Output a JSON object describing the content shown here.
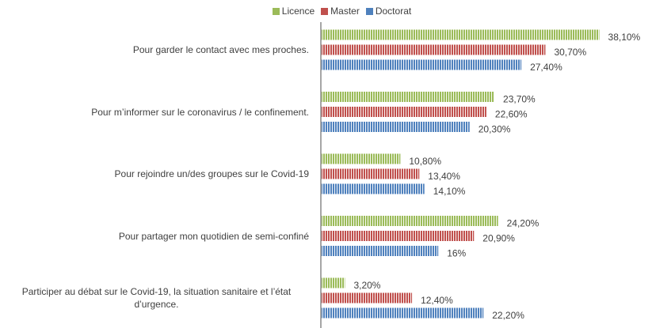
{
  "chart_data": {
    "type": "bar",
    "orientation": "horizontal",
    "categories": [
      "Pour garder le contact avec mes proches.",
      "Pour m’informer sur le coronavirus / le confinement.",
      "Pour rejoindre un/des groupes sur le Covid-19",
      "Pour partager mon quotidien de semi-confiné",
      "Participer au débat sur le Covid-19, la situation sanitaire et l’état d’urgence."
    ],
    "series": [
      {
        "name": "Licence",
        "color": "#9bbb59",
        "values": [
          38.1,
          23.7,
          10.8,
          24.2,
          3.2
        ],
        "value_labels": [
          "38,10%",
          "23,70%",
          "10,80%",
          "24,20%",
          "3,20%"
        ]
      },
      {
        "name": "Master",
        "color": "#c0504d",
        "values": [
          30.7,
          22.6,
          13.4,
          20.9,
          12.4
        ],
        "value_labels": [
          "30,70%",
          "22,60%",
          "13,40%",
          "20,90%",
          "12,40%"
        ]
      },
      {
        "name": "Doctorat",
        "color": "#4f81bd",
        "values": [
          27.4,
          20.3,
          14.1,
          16,
          22.2
        ],
        "value_labels": [
          "27,40%",
          "20,30%",
          "14,10%",
          "16%",
          "22,20%"
        ]
      }
    ],
    "xlim": [
      0,
      45
    ],
    "legend": "top"
  }
}
